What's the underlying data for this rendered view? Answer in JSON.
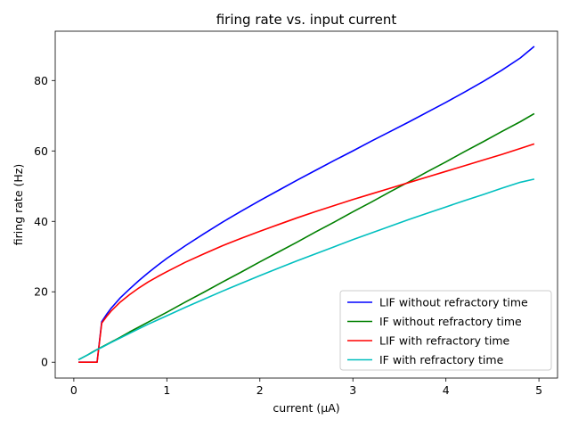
{
  "chart_data": {
    "type": "line",
    "title": "firing rate vs. input current",
    "xlabel": "current (μA)",
    "ylabel": "firing rate (Hz)",
    "xlim": [
      -0.2,
      5.2
    ],
    "ylim": [
      -4.5,
      94
    ],
    "xticks": [
      0,
      1,
      2,
      3,
      4,
      5
    ],
    "yticks": [
      0,
      20,
      40,
      60,
      80
    ],
    "grid": false,
    "legend_position": "bottom-right",
    "x": [
      0.05,
      0.1,
      0.15,
      0.2,
      0.25,
      0.3,
      0.35,
      0.4,
      0.5,
      0.6,
      0.7,
      0.8,
      0.9,
      1.0,
      1.2,
      1.4,
      1.6,
      1.8,
      2.0,
      2.2,
      2.4,
      2.6,
      2.8,
      3.0,
      3.2,
      3.4,
      3.6,
      3.8,
      4.0,
      4.2,
      4.4,
      4.6,
      4.8,
      4.95
    ],
    "series": [
      {
        "name": "LIF without refractory time",
        "color": "#0000ff",
        "values": [
          0,
          0,
          0,
          0,
          0,
          11.5,
          13.5,
          15.3,
          18.3,
          20.8,
          23.2,
          25.4,
          27.5,
          29.5,
          33.1,
          36.5,
          39.8,
          42.9,
          45.9,
          48.8,
          51.7,
          54.5,
          57.3,
          60.0,
          62.8,
          65.5,
          68.2,
          71.0,
          73.8,
          76.7,
          79.7,
          82.9,
          86.4,
          89.7
        ]
      },
      {
        "name": "IF without refractory time",
        "color": "#008000",
        "values": [
          0.7,
          1.4,
          2.1,
          2.9,
          3.6,
          4.3,
          5.0,
          5.7,
          7.1,
          8.6,
          10.0,
          11.4,
          12.8,
          14.2,
          17.1,
          19.9,
          22.8,
          25.6,
          28.5,
          31.3,
          34.1,
          37.0,
          39.8,
          42.7,
          45.5,
          48.4,
          51.2,
          54.1,
          56.9,
          59.8,
          62.6,
          65.5,
          68.3,
          70.6
        ]
      },
      {
        "name": "LIF with refractory time",
        "color": "#ff0000",
        "values": [
          0,
          0,
          0,
          0,
          0,
          11.1,
          12.9,
          14.5,
          17.1,
          19.2,
          21.1,
          22.8,
          24.3,
          25.7,
          28.4,
          30.8,
          33.1,
          35.2,
          37.2,
          39.1,
          41.0,
          42.8,
          44.5,
          46.2,
          47.8,
          49.4,
          51.0,
          52.6,
          54.2,
          55.8,
          57.4,
          59.0,
          60.7,
          62.0
        ]
      },
      {
        "name": "IF with refractory time",
        "color": "#00bfbf",
        "values": [
          0.7,
          1.4,
          2.1,
          2.8,
          3.6,
          4.2,
          4.9,
          5.6,
          6.9,
          8.2,
          9.5,
          10.8,
          12.0,
          13.2,
          15.6,
          17.9,
          20.2,
          22.4,
          24.6,
          26.7,
          28.8,
          30.8,
          32.8,
          34.8,
          36.7,
          38.6,
          40.5,
          42.3,
          44.1,
          45.9,
          47.6,
          49.4,
          51.1,
          52.0
        ]
      }
    ]
  }
}
